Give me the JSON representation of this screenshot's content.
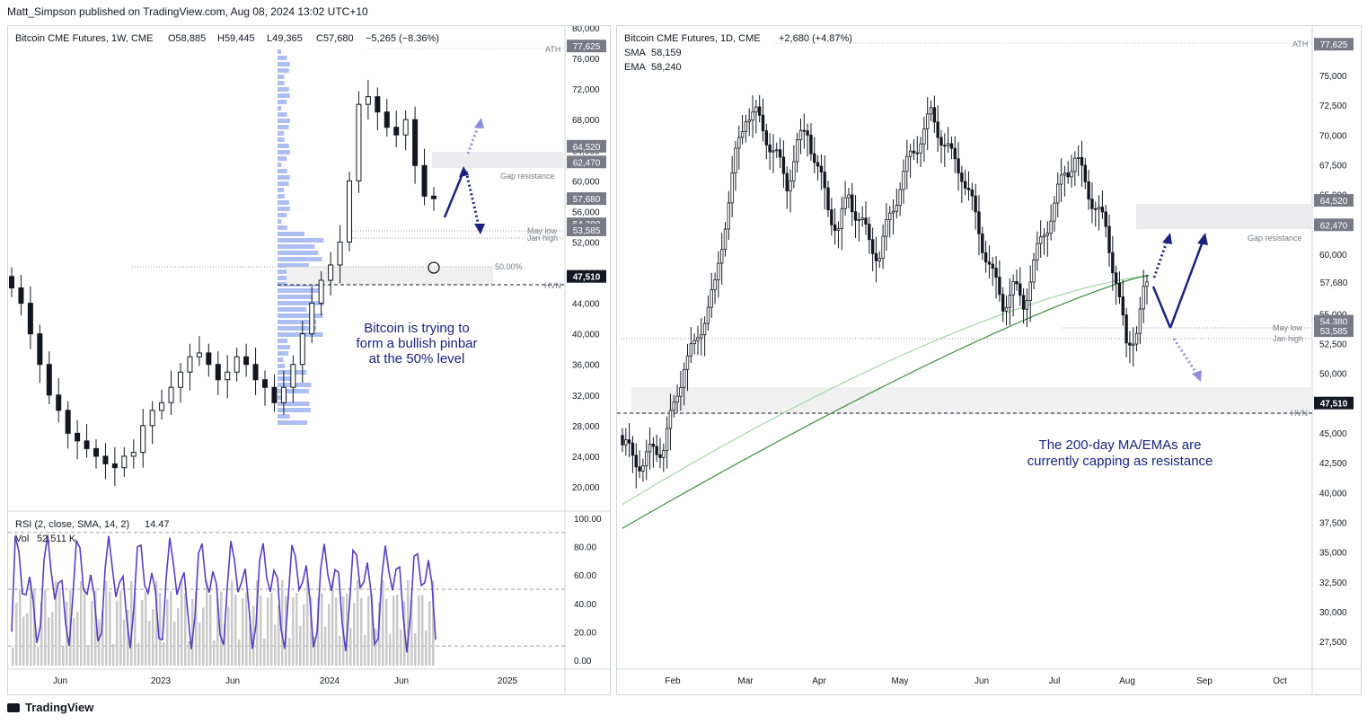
{
  "header": {
    "publisher": "Matt_Simpson published on TradingView.com, Aug 08, 2024 13:02 UTC+10"
  },
  "footer": {
    "brand": "TradingView"
  },
  "colors": {
    "bull": "#131722",
    "bear": "#131722",
    "arrow": "#1a237e",
    "sma": "#a5d6a7",
    "ema": "#388e3c",
    "rsi": "#5b3cc4",
    "volume": "#c9c9c9",
    "profile": "#90a8f0"
  },
  "weekly": {
    "legend": {
      "symbol": "Bitcoin CME Futures, 1W, CME",
      "o": "O58,885",
      "h": "H59,445",
      "l": "L49,365",
      "c": "C57,680",
      "chg": "−5,265 (−8.36%)"
    },
    "yticks": [
      "80,000",
      "76,000",
      "72,000",
      "68,000",
      "64,000",
      "60,000",
      "56,000",
      "52,000",
      "48,000",
      "44,000",
      "40,000",
      "36,000",
      "32,000",
      "28,000",
      "24,000",
      "20,000"
    ],
    "xticks": [
      "Jun",
      "2023",
      "Jun",
      "2024",
      "Jun",
      "2025"
    ],
    "price_labels": [
      "77,625",
      "64,520",
      "62,470",
      "57,680",
      "54,380",
      "53,585",
      "47,510"
    ],
    "level_texts": {
      "ath": "ATH",
      "gap": "Gap resistance",
      "may": "May low",
      "jan": "Jan high",
      "fifty": "50.00%",
      "hvn": "HVN"
    },
    "annotation": [
      "Bitcoin is trying to",
      "form a bullish pinbar",
      "at the 50% level"
    ],
    "rsi": {
      "label": "RSI (2, close, SMA, 14, 2)",
      "value": "14.47",
      "vol_label": "Vol",
      "vol_value": "52.511 K",
      "yticks": [
        "100.00",
        "80.00",
        "60.00",
        "40.00",
        "20.00",
        "0.00"
      ]
    }
  },
  "daily": {
    "legend": {
      "symbol": "Bitcoin CME Futures, 1D, CME",
      "chg": "+2,680 (+4.87%)",
      "sma_label": "SMA",
      "sma_value": "58,159",
      "ema_label": "EMA",
      "ema_value": "58,240"
    },
    "yticks": [
      "77,500",
      "75,000",
      "72,500",
      "70,000",
      "67,500",
      "65,000",
      "62,500",
      "60,000",
      "57,500",
      "55,000",
      "52,500",
      "50,000",
      "47,500",
      "45,000",
      "42,500",
      "40,000",
      "37,500",
      "35,000",
      "32,500",
      "30,000",
      "27,500"
    ],
    "xticks": [
      "Feb",
      "Mar",
      "Apr",
      "May",
      "Jun",
      "Jul",
      "Aug",
      "Sep",
      "Oct"
    ],
    "price_labels": [
      "77,625",
      "64,520",
      "62,470",
      "57,680",
      "54,380",
      "53,585",
      "47,510"
    ],
    "level_texts": {
      "ath": "ATH",
      "gap": "Gap resistance",
      "may": "May low",
      "jan": "Jan high",
      "hvn": "HVN"
    },
    "annotation": [
      "The 200-day MA/EMAs are",
      "currently capping as resistance"
    ]
  },
  "chart_data": [
    {
      "type": "candlestick",
      "title": "Bitcoin CME Futures, 1W, CME",
      "ylim": [
        18000,
        80000
      ],
      "x_ticks": [
        "Jun",
        "2023",
        "Jun",
        "2024",
        "Jun",
        "2025"
      ],
      "closes_approx": [
        46000,
        44000,
        40000,
        36000,
        32000,
        30000,
        27000,
        26000,
        25000,
        24000,
        23000,
        22500,
        24000,
        24500,
        28000,
        30000,
        31000,
        33000,
        35000,
        37000,
        37500,
        36000,
        34000,
        35000,
        37000,
        36000,
        34000,
        33000,
        31000,
        33000,
        36000,
        40000,
        44000,
        47000,
        49000,
        52000,
        60000,
        70000,
        71000,
        69000,
        67000,
        66000,
        68000,
        62000,
        58000,
        57680
      ],
      "levels": {
        "ATH": 77625,
        "Gap resistance": [
          62470,
          64520
        ],
        "May low": 54380,
        "Jan high": 53585,
        "HVN": 47510
      },
      "rsi_ylim": [
        0,
        100
      ],
      "rsi_last": 14.47,
      "volume_last": "52.511 K"
    },
    {
      "type": "candlestick",
      "title": "Bitcoin CME Futures, 1D, CME",
      "ylim": [
        26000,
        79000
      ],
      "x_ticks": [
        "Feb",
        "Mar",
        "Apr",
        "May",
        "Jun",
        "Jul",
        "Aug",
        "Sep",
        "Oct"
      ],
      "closes_approx": [
        44000,
        43000,
        42500,
        43500,
        44000,
        47000,
        51000,
        52000,
        55000,
        57000,
        63000,
        68000,
        72000,
        71500,
        70000,
        68000,
        66000,
        69000,
        70500,
        67000,
        64000,
        62000,
        65000,
        63000,
        61000,
        60000,
        63000,
        66000,
        68000,
        70000,
        71500,
        70000,
        68000,
        67000,
        64000,
        61000,
        58000,
        56000,
        57000,
        56000,
        59000,
        62000,
        64000,
        67000,
        68000,
        66000,
        64000,
        62000,
        58000,
        52000,
        54000,
        57680
      ],
      "sma200_start": 39000,
      "ema200_start": 37000,
      "sma_last": 58159,
      "ema_last": 58240,
      "levels": {
        "ATH": 77625,
        "Gap resistance": [
          62470,
          64520
        ],
        "May low": 54380,
        "Jan high": 53585,
        "HVN": 47510
      }
    }
  ]
}
